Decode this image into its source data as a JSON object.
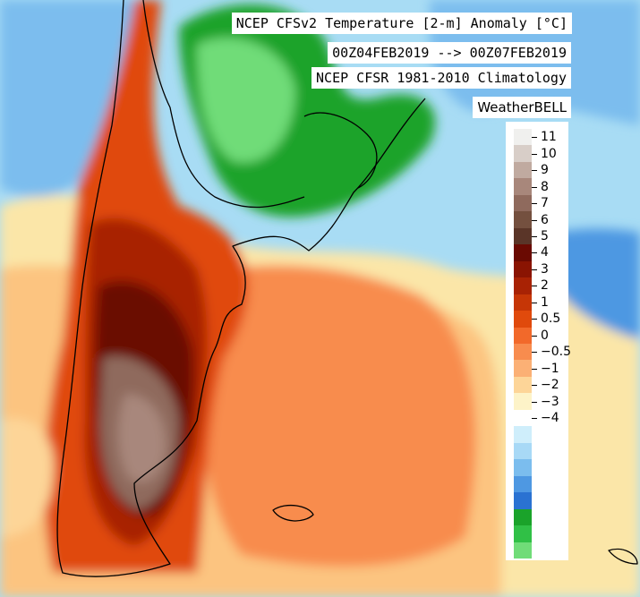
{
  "header": {
    "title": "NCEP CFSv2 Temperature [2-m] Anomaly  [°C]",
    "dates": "00Z04FEB2019 --> 00Z07FEB2019",
    "climatology": "NCEP CFSR 1981-2010 Climatology",
    "brand": "WeatherBELL"
  },
  "legend": {
    "colors": [
      "#f0f0ee",
      "#d8cec8",
      "#c0aaa0",
      "#a8877b",
      "#8f6a5d",
      "#74503f",
      "#5a3528",
      "#6a0a02",
      "#8a1402",
      "#a82204",
      "#c63606",
      "#e04a0c",
      "#f2692a",
      "#f88c4e",
      "#fbb075",
      "#fdd598",
      "#fdf3c8",
      "#ffffff",
      "#cfeefb",
      "#a8d9f6",
      "#7bbdee",
      "#4e98e2",
      "#2a72d2",
      "#1aa32a",
      "#30c046",
      "#70dc78"
    ],
    "labels": [
      "11",
      "10",
      "9",
      "8",
      "7",
      "6",
      "5",
      "4",
      "3",
      "2",
      "1",
      "0.5",
      "0",
      "−0.5",
      "−1",
      "−2",
      "−3",
      "−4"
    ],
    "label_at_bands": [
      1,
      3,
      5,
      7,
      9,
      11,
      13,
      15,
      17,
      19,
      21,
      23,
      25,
      27,
      29,
      31,
      33,
      35
    ]
  }
}
